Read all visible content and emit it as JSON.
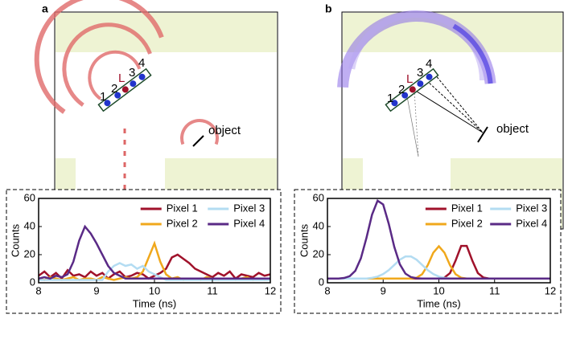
{
  "chart_data": [
    {
      "type": "line",
      "panel_label": "a",
      "xlabel": "Time (ns)",
      "ylabel": "Counts",
      "diagram": {
        "labels": [
          "1",
          "2",
          "L",
          "3",
          "4"
        ],
        "object": "object"
      },
      "xlim": [
        8,
        12
      ],
      "ylim": [
        0,
        60
      ],
      "xticks": [
        8,
        9,
        10,
        11,
        12
      ],
      "yticks": [
        0,
        20,
        40,
        60
      ],
      "x": [
        8.0,
        8.1,
        8.2,
        8.3,
        8.4,
        8.5,
        8.6,
        8.7,
        8.8,
        8.9,
        9.0,
        9.1,
        9.2,
        9.3,
        9.4,
        9.5,
        9.6,
        9.7,
        9.8,
        9.9,
        10.0,
        10.1,
        10.2,
        10.3,
        10.4,
        10.5,
        10.6,
        10.7,
        10.8,
        10.9,
        11.0,
        11.1,
        11.2,
        11.3,
        11.4,
        11.5,
        11.6,
        11.7,
        11.8,
        11.9,
        12.0
      ],
      "series": [
        {
          "name": "Pixel 1",
          "color": "#a0122b",
          "values": [
            5,
            8,
            4,
            7,
            3,
            9,
            5,
            6,
            4,
            8,
            5,
            7,
            3,
            6,
            8,
            4,
            5,
            7,
            6,
            3,
            5,
            7,
            10,
            18,
            20,
            17,
            14,
            10,
            8,
            6,
            4,
            7,
            5,
            8,
            3,
            6,
            5,
            4,
            7,
            5,
            6
          ]
        },
        {
          "name": "Pixel 2",
          "color": "#f0a81c",
          "values": [
            3,
            2,
            4,
            3,
            2,
            3,
            4,
            2,
            3,
            3,
            2,
            4,
            3,
            2,
            3,
            4,
            3,
            4,
            8,
            18,
            28,
            15,
            6,
            3,
            4,
            2,
            3,
            3,
            2,
            4,
            3,
            2,
            3,
            3,
            2,
            3,
            4,
            2,
            3,
            2,
            3
          ]
        },
        {
          "name": "Pixel 3",
          "color": "#b3dcf2",
          "values": [
            2,
            2,
            2,
            2,
            2,
            2,
            2,
            2,
            2,
            2,
            2,
            2,
            8,
            12,
            14,
            12,
            13,
            10,
            12,
            8,
            6,
            4,
            2,
            2,
            2,
            2,
            2,
            2,
            2,
            2,
            2,
            2,
            2,
            2,
            2,
            2,
            2,
            2,
            2,
            2,
            2
          ]
        },
        {
          "name": "Pixel 4",
          "color": "#5a2a86",
          "values": [
            3,
            4,
            3,
            5,
            4,
            6,
            15,
            30,
            40,
            35,
            28,
            20,
            12,
            7,
            5,
            3,
            3,
            3,
            3,
            3,
            3,
            3,
            3,
            3,
            3,
            3,
            3,
            3,
            3,
            3,
            3,
            3,
            3,
            3,
            3,
            3,
            3,
            3,
            3,
            3,
            3
          ]
        }
      ]
    },
    {
      "type": "line",
      "panel_label": "b",
      "xlabel": "Time (ns)",
      "ylabel": "Counts",
      "diagram": {
        "labels": [
          "1",
          "2",
          "L",
          "3",
          "4"
        ],
        "object": "object"
      },
      "xlim": [
        8,
        12
      ],
      "ylim": [
        0,
        60
      ],
      "xticks": [
        8,
        9,
        10,
        11,
        12
      ],
      "yticks": [
        0,
        20,
        40,
        60
      ],
      "x": [
        8.0,
        8.1,
        8.2,
        8.3,
        8.4,
        8.5,
        8.6,
        8.7,
        8.8,
        8.9,
        9.0,
        9.1,
        9.2,
        9.3,
        9.4,
        9.5,
        9.6,
        9.7,
        9.8,
        9.9,
        10.0,
        10.1,
        10.2,
        10.3,
        10.4,
        10.5,
        10.6,
        10.7,
        10.8,
        10.9,
        11.0,
        11.1,
        11.2,
        11.3,
        11.4,
        11.5,
        11.6,
        11.7,
        11.8,
        11.9,
        12.0
      ],
      "series": [
        {
          "name": "Pixel 1",
          "color": "#a0122b",
          "values": [
            3,
            3,
            3,
            3,
            3,
            3,
            3,
            3,
            3,
            3,
            3,
            3,
            3,
            3,
            3,
            3,
            3,
            3,
            3,
            3,
            3,
            3.7,
            6.9,
            15.8,
            26.2,
            26.2,
            15.8,
            6.9,
            3.7,
            3,
            3,
            3,
            3,
            3,
            3,
            3,
            3,
            3,
            3,
            3,
            3
          ]
        },
        {
          "name": "Pixel 2",
          "color": "#f0a81c",
          "values": [
            3,
            3,
            3,
            3,
            3,
            3,
            3,
            3,
            3,
            3,
            3,
            3,
            3,
            3,
            3,
            3,
            3.6,
            6.1,
            12.5,
            21.4,
            26,
            21.4,
            12.5,
            6.1,
            3.6,
            3,
            3,
            3,
            3,
            3,
            3,
            3,
            3,
            3,
            3,
            3,
            3,
            3,
            3,
            3,
            3
          ]
        },
        {
          "name": "Pixel 3",
          "color": "#b3dcf2",
          "values": [
            3,
            3,
            3,
            3,
            3,
            3,
            3,
            3,
            3.5,
            4.4,
            6.2,
            9,
            12.7,
            16.4,
            18.7,
            18.7,
            16.4,
            12.7,
            9,
            6.2,
            4.4,
            3.5,
            3,
            3,
            3,
            3,
            3,
            3,
            3,
            3,
            3,
            3,
            3,
            3,
            3,
            3,
            3,
            3,
            3,
            3,
            3
          ]
        },
        {
          "name": "Pixel 4",
          "color": "#5a2a86",
          "values": [
            3,
            3,
            3,
            3.4,
            4.7,
            8.5,
            17.4,
            31.9,
            48.4,
            58.4,
            55.7,
            42,
            25.5,
            13.1,
            6.5,
            4,
            3.2,
            3,
            3,
            3,
            3,
            3,
            3,
            3,
            3,
            3,
            3,
            3,
            3,
            3,
            3,
            3,
            3,
            3,
            3,
            3,
            3,
            3,
            3,
            3,
            3
          ]
        }
      ]
    }
  ]
}
